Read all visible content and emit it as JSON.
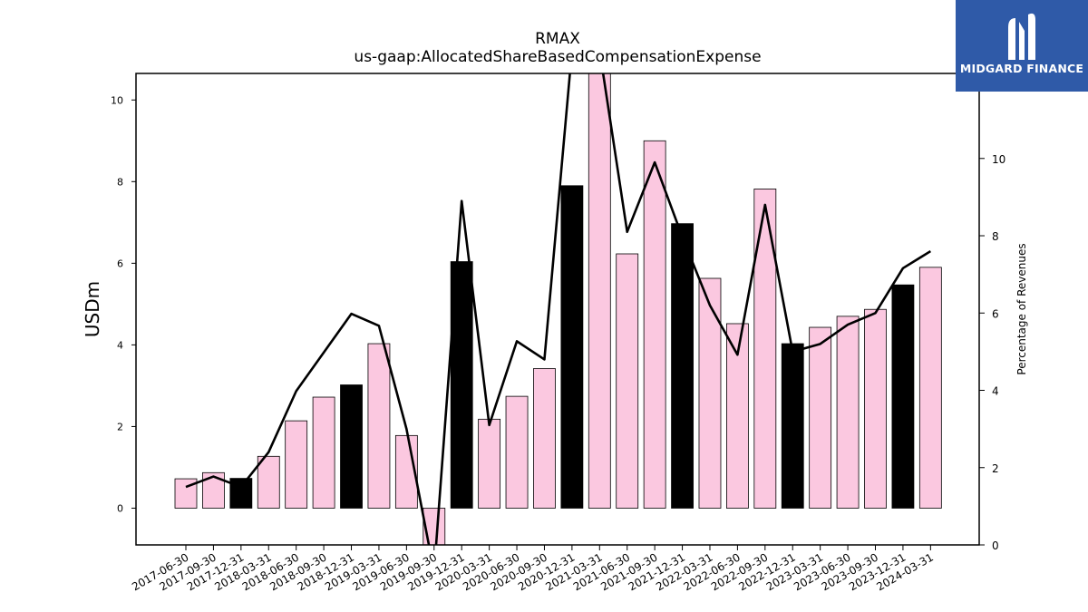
{
  "logo": {
    "text": "MIDGARD FINANCE"
  },
  "chart_data": {
    "type": "bar",
    "title": "RMAX",
    "subtitle": "us-gaap:AllocatedShareBasedCompensationExpense",
    "ylabel": "USDm",
    "y2label": "Percentage of Revenues",
    "ylim": [
      -0.9,
      10.65
    ],
    "y2lim": [
      0,
      12.2
    ],
    "yticks": [
      0,
      2,
      4,
      6,
      8,
      10
    ],
    "y2ticks": [
      0,
      2,
      4,
      6,
      8,
      10,
      12
    ],
    "categories": [
      "2017-06-30",
      "2017-09-30",
      "2017-12-31",
      "2018-03-31",
      "2018-06-30",
      "2018-09-30",
      "2018-12-31",
      "2019-03-31",
      "2019-06-30",
      "2019-09-30",
      "2019-12-31",
      "2020-03-31",
      "2020-06-30",
      "2020-09-30",
      "2020-12-31",
      "2021-03-31",
      "2021-06-30",
      "2021-09-30",
      "2021-12-31",
      "2022-03-31",
      "2022-06-30",
      "2022-09-30",
      "2022-12-31",
      "2023-03-31",
      "2023-06-30",
      "2023-09-30",
      "2023-12-31",
      "2024-03-31"
    ],
    "series": [
      {
        "type": "bar",
        "values": [
          0.72,
          0.87,
          0.73,
          1.27,
          2.14,
          2.72,
          3.02,
          4.03,
          1.78,
          -0.93,
          6.04,
          2.18,
          2.74,
          3.42,
          7.9,
          10.8,
          6.23,
          9.0,
          6.97,
          5.63,
          4.52,
          7.82,
          4.03,
          4.43,
          4.7,
          4.87,
          5.47,
          5.9
        ],
        "colors": [
          "#fbc8e0",
          "#fbc8e0",
          "#000000",
          "#fbc8e0",
          "#fbc8e0",
          "#fbc8e0",
          "#000000",
          "#fbc8e0",
          "#fbc8e0",
          "#fbc8e0",
          "#000000",
          "#fbc8e0",
          "#fbc8e0",
          "#fbc8e0",
          "#000000",
          "#fbc8e0",
          "#fbc8e0",
          "#fbc8e0",
          "#000000",
          "#fbc8e0",
          "#fbc8e0",
          "#fbc8e0",
          "#000000",
          "#fbc8e0",
          "#fbc8e0",
          "#fbc8e0",
          "#000000",
          "#fbc8e0"
        ]
      },
      {
        "type": "line",
        "axis": "right",
        "color": "#000000",
        "values": [
          1.5,
          1.77,
          1.5,
          2.4,
          3.98,
          4.98,
          5.98,
          5.67,
          3.0,
          -0.7,
          8.9,
          3.1,
          5.27,
          4.8,
          12.8,
          12.8,
          8.1,
          9.9,
          7.97,
          6.2,
          4.92,
          8.8,
          5.0,
          5.2,
          5.7,
          6.0,
          7.16,
          7.6
        ]
      }
    ],
    "colors": {
      "bar_regular": "#fbc8e0",
      "bar_year_end": "#000000",
      "line": "#000000"
    },
    "grid": false,
    "legend": "none"
  }
}
